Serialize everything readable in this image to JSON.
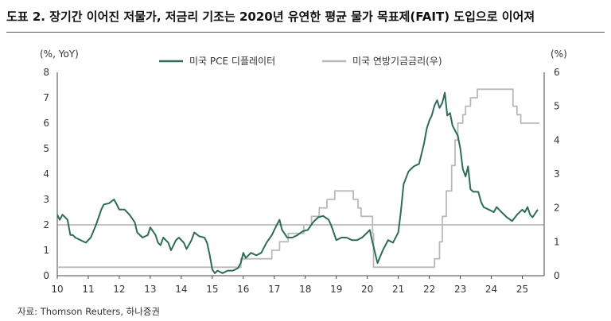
{
  "title": "도표 2. 장기간 이어진 저물가, 저금리 기조는 2020년 유연한 평균 물가 목표제(FAIT) 도입으로 이어져",
  "source": "자료: Thomson Reuters, 하나증권",
  "chart_data": {
    "type": "line",
    "left_unit": "(%, YoY)",
    "right_unit": "(%)",
    "left_axis": {
      "min": 0,
      "max": 8,
      "ticks": [
        "0",
        "1",
        "2",
        "3",
        "4",
        "5",
        "6",
        "7",
        "8"
      ]
    },
    "right_axis": {
      "min": 0,
      "max": 6,
      "ticks": [
        "0",
        "1",
        "2",
        "3",
        "4",
        "5",
        "6"
      ]
    },
    "x_axis": {
      "min": 10,
      "max": 25.5,
      "ticks": [
        "10",
        "11",
        "12",
        "13",
        "14",
        "15",
        "16",
        "17",
        "18",
        "19",
        "20",
        "21",
        "22",
        "23",
        "24",
        "25"
      ]
    },
    "reference_line_left": 2,
    "legend_position": "top",
    "colors": {
      "pce": "#2f6b5a",
      "ffr": "#b9b9b9",
      "reference": "#888888"
    },
    "series": [
      {
        "name": "미국 PCE 디플레이터",
        "axis": "left",
        "points": [
          [
            10.0,
            2.4
          ],
          [
            10.08,
            2.2
          ],
          [
            10.17,
            2.4
          ],
          [
            10.33,
            2.2
          ],
          [
            10.42,
            1.6
          ],
          [
            10.5,
            1.6
          ],
          [
            10.58,
            1.5
          ],
          [
            10.75,
            1.4
          ],
          [
            10.92,
            1.3
          ],
          [
            11.08,
            1.5
          ],
          [
            11.25,
            2.0
          ],
          [
            11.42,
            2.6
          ],
          [
            11.5,
            2.8
          ],
          [
            11.67,
            2.85
          ],
          [
            11.83,
            3.0
          ],
          [
            11.92,
            2.8
          ],
          [
            12.0,
            2.6
          ],
          [
            12.17,
            2.6
          ],
          [
            12.33,
            2.4
          ],
          [
            12.5,
            2.1
          ],
          [
            12.58,
            1.7
          ],
          [
            12.75,
            1.5
          ],
          [
            12.92,
            1.6
          ],
          [
            13.0,
            1.9
          ],
          [
            13.17,
            1.6
          ],
          [
            13.25,
            1.3
          ],
          [
            13.33,
            1.2
          ],
          [
            13.42,
            1.5
          ],
          [
            13.58,
            1.3
          ],
          [
            13.67,
            1.0
          ],
          [
            13.83,
            1.4
          ],
          [
            13.92,
            1.5
          ],
          [
            14.08,
            1.3
          ],
          [
            14.17,
            1.05
          ],
          [
            14.33,
            1.4
          ],
          [
            14.42,
            1.7
          ],
          [
            14.58,
            1.55
          ],
          [
            14.75,
            1.5
          ],
          [
            14.83,
            1.3
          ],
          [
            14.92,
            0.8
          ],
          [
            15.0,
            0.25
          ],
          [
            15.08,
            0.1
          ],
          [
            15.17,
            0.2
          ],
          [
            15.33,
            0.1
          ],
          [
            15.5,
            0.2
          ],
          [
            15.67,
            0.2
          ],
          [
            15.83,
            0.3
          ],
          [
            15.92,
            0.5
          ],
          [
            16.0,
            0.9
          ],
          [
            16.08,
            0.7
          ],
          [
            16.25,
            0.9
          ],
          [
            16.42,
            0.8
          ],
          [
            16.58,
            0.9
          ],
          [
            16.75,
            1.3
          ],
          [
            16.92,
            1.6
          ],
          [
            17.08,
            2.0
          ],
          [
            17.17,
            2.2
          ],
          [
            17.25,
            1.8
          ],
          [
            17.42,
            1.5
          ],
          [
            17.58,
            1.5
          ],
          [
            17.75,
            1.6
          ],
          [
            17.92,
            1.75
          ],
          [
            18.08,
            1.8
          ],
          [
            18.25,
            2.1
          ],
          [
            18.42,
            2.3
          ],
          [
            18.58,
            2.35
          ],
          [
            18.75,
            2.2
          ],
          [
            18.83,
            2.0
          ],
          [
            19.0,
            1.4
          ],
          [
            19.17,
            1.5
          ],
          [
            19.33,
            1.5
          ],
          [
            19.5,
            1.4
          ],
          [
            19.67,
            1.4
          ],
          [
            19.83,
            1.5
          ],
          [
            20.0,
            1.7
          ],
          [
            20.08,
            1.8
          ],
          [
            20.17,
            1.3
          ],
          [
            20.33,
            0.5
          ],
          [
            20.5,
            1.0
          ],
          [
            20.67,
            1.4
          ],
          [
            20.83,
            1.3
          ],
          [
            21.0,
            1.7
          ],
          [
            21.08,
            2.5
          ],
          [
            21.17,
            3.6
          ],
          [
            21.33,
            4.1
          ],
          [
            21.5,
            4.3
          ],
          [
            21.67,
            4.4
          ],
          [
            21.83,
            5.2
          ],
          [
            21.92,
            5.8
          ],
          [
            22.0,
            6.1
          ],
          [
            22.08,
            6.3
          ],
          [
            22.17,
            6.7
          ],
          [
            22.25,
            6.9
          ],
          [
            22.33,
            6.6
          ],
          [
            22.42,
            6.8
          ],
          [
            22.5,
            7.2
          ],
          [
            22.58,
            6.3
          ],
          [
            22.67,
            6.4
          ],
          [
            22.75,
            5.9
          ],
          [
            22.92,
            5.5
          ],
          [
            23.0,
            5.0
          ],
          [
            23.08,
            4.2
          ],
          [
            23.17,
            3.9
          ],
          [
            23.25,
            4.3
          ],
          [
            23.33,
            3.4
          ],
          [
            23.42,
            3.3
          ],
          [
            23.58,
            3.3
          ],
          [
            23.67,
            2.9
          ],
          [
            23.75,
            2.7
          ],
          [
            23.92,
            2.6
          ],
          [
            24.08,
            2.5
          ],
          [
            24.17,
            2.7
          ],
          [
            24.33,
            2.5
          ],
          [
            24.5,
            2.3
          ],
          [
            24.67,
            2.15
          ],
          [
            24.83,
            2.4
          ],
          [
            25.0,
            2.6
          ],
          [
            25.08,
            2.5
          ],
          [
            25.17,
            2.7
          ],
          [
            25.25,
            2.4
          ],
          [
            25.33,
            2.3
          ],
          [
            25.5,
            2.6
          ]
        ]
      },
      {
        "name": "미국 연방기금금리(우)",
        "axis": "right",
        "points": [
          [
            10.0,
            0.25
          ],
          [
            15.92,
            0.25
          ],
          [
            15.92,
            0.5
          ],
          [
            16.92,
            0.5
          ],
          [
            16.92,
            0.75
          ],
          [
            17.17,
            0.75
          ],
          [
            17.17,
            1.0
          ],
          [
            17.45,
            1.0
          ],
          [
            17.45,
            1.25
          ],
          [
            17.95,
            1.25
          ],
          [
            17.95,
            1.5
          ],
          [
            18.2,
            1.5
          ],
          [
            18.2,
            1.75
          ],
          [
            18.45,
            1.75
          ],
          [
            18.45,
            2.0
          ],
          [
            18.7,
            2.0
          ],
          [
            18.7,
            2.25
          ],
          [
            18.95,
            2.25
          ],
          [
            18.95,
            2.5
          ],
          [
            19.55,
            2.5
          ],
          [
            19.55,
            2.25
          ],
          [
            19.7,
            2.25
          ],
          [
            19.7,
            2.0
          ],
          [
            19.8,
            2.0
          ],
          [
            19.8,
            1.75
          ],
          [
            20.17,
            1.75
          ],
          [
            20.17,
            1.25
          ],
          [
            20.2,
            1.25
          ],
          [
            20.2,
            0.25
          ],
          [
            22.17,
            0.25
          ],
          [
            22.17,
            0.5
          ],
          [
            22.33,
            0.5
          ],
          [
            22.33,
            1.0
          ],
          [
            22.42,
            1.0
          ],
          [
            22.42,
            1.75
          ],
          [
            22.55,
            1.75
          ],
          [
            22.55,
            2.5
          ],
          [
            22.72,
            2.5
          ],
          [
            22.72,
            3.25
          ],
          [
            22.83,
            3.25
          ],
          [
            22.83,
            4.0
          ],
          [
            22.92,
            4.0
          ],
          [
            22.92,
            4.5
          ],
          [
            23.08,
            4.5
          ],
          [
            23.08,
            4.75
          ],
          [
            23.17,
            4.75
          ],
          [
            23.17,
            5.0
          ],
          [
            23.33,
            5.0
          ],
          [
            23.33,
            5.25
          ],
          [
            23.55,
            5.25
          ],
          [
            23.55,
            5.5
          ],
          [
            24.7,
            5.5
          ],
          [
            24.7,
            5.0
          ],
          [
            24.83,
            5.0
          ],
          [
            24.83,
            4.75
          ],
          [
            24.95,
            4.75
          ],
          [
            24.95,
            4.5
          ],
          [
            25.55,
            4.5
          ]
        ]
      }
    ]
  }
}
